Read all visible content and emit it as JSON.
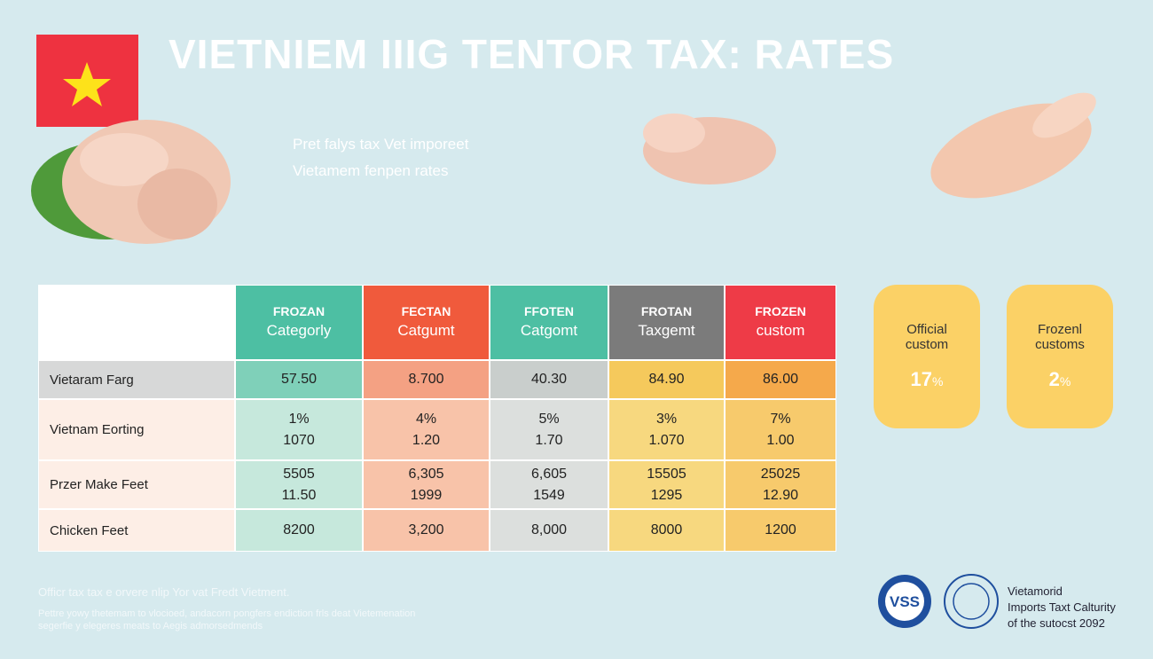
{
  "title": "VIETNIEM IIIG TENTOR TAX: RATES",
  "subtitle": [
    "Pret falys tax Vet imporeet",
    "Vietamem fenpen rates"
  ],
  "table": {
    "headers": [
      [
        "FROZAN",
        "Categorly"
      ],
      [
        "FECTAN",
        "Catgumt"
      ],
      [
        "FFOTEN",
        "Catgomt"
      ],
      [
        "FROTAN",
        "Taxgemt"
      ],
      [
        "FROZEN",
        "custom"
      ]
    ],
    "rows": [
      {
        "label": "Vietaram Farg",
        "cells": [
          [
            "57.50"
          ],
          [
            "8.700"
          ],
          [
            "40.30"
          ],
          [
            "84.90"
          ],
          [
            "86.00"
          ]
        ]
      },
      {
        "label": "Vietnam Eorting",
        "cells": [
          [
            "1%",
            "1070"
          ],
          [
            "4%",
            "1.20"
          ],
          [
            "5%",
            "1.70"
          ],
          [
            "3%",
            "1.070"
          ],
          [
            "7%",
            "1.00"
          ]
        ]
      },
      {
        "label": "Przer Make Feet",
        "cells": [
          [
            "5505",
            "11.50"
          ],
          [
            "6,305",
            "1999"
          ],
          [
            "6,605",
            "1549"
          ],
          [
            "15505",
            "1295"
          ],
          [
            "25025",
            "12.90"
          ]
        ]
      },
      {
        "label": "Chicken Feet",
        "cells": [
          [
            "8200"
          ],
          [
            "3,200"
          ],
          [
            "8,000"
          ],
          [
            "8000"
          ],
          [
            "1200"
          ]
        ]
      }
    ]
  },
  "badges": [
    {
      "label": [
        "Official",
        "custom"
      ],
      "value": "17",
      "unit": "%"
    },
    {
      "label": [
        "Frozenl",
        "customs"
      ],
      "value": "2",
      "unit": "%"
    }
  ],
  "footer": [
    "Officr tax tax e orvere nlip Yor vat Fredt Vietment.",
    "Pettre yowy thetemam to vlocioed, andacorn pongfers endiction frls deat Vietemenation",
    "segerfie y elegeres meats to Aegis admorsedmends"
  ],
  "logo_text": "VSS",
  "credit": [
    "Vietamorid",
    "Imports Taxt Calturity",
    "of the sutocst 2092"
  ]
}
